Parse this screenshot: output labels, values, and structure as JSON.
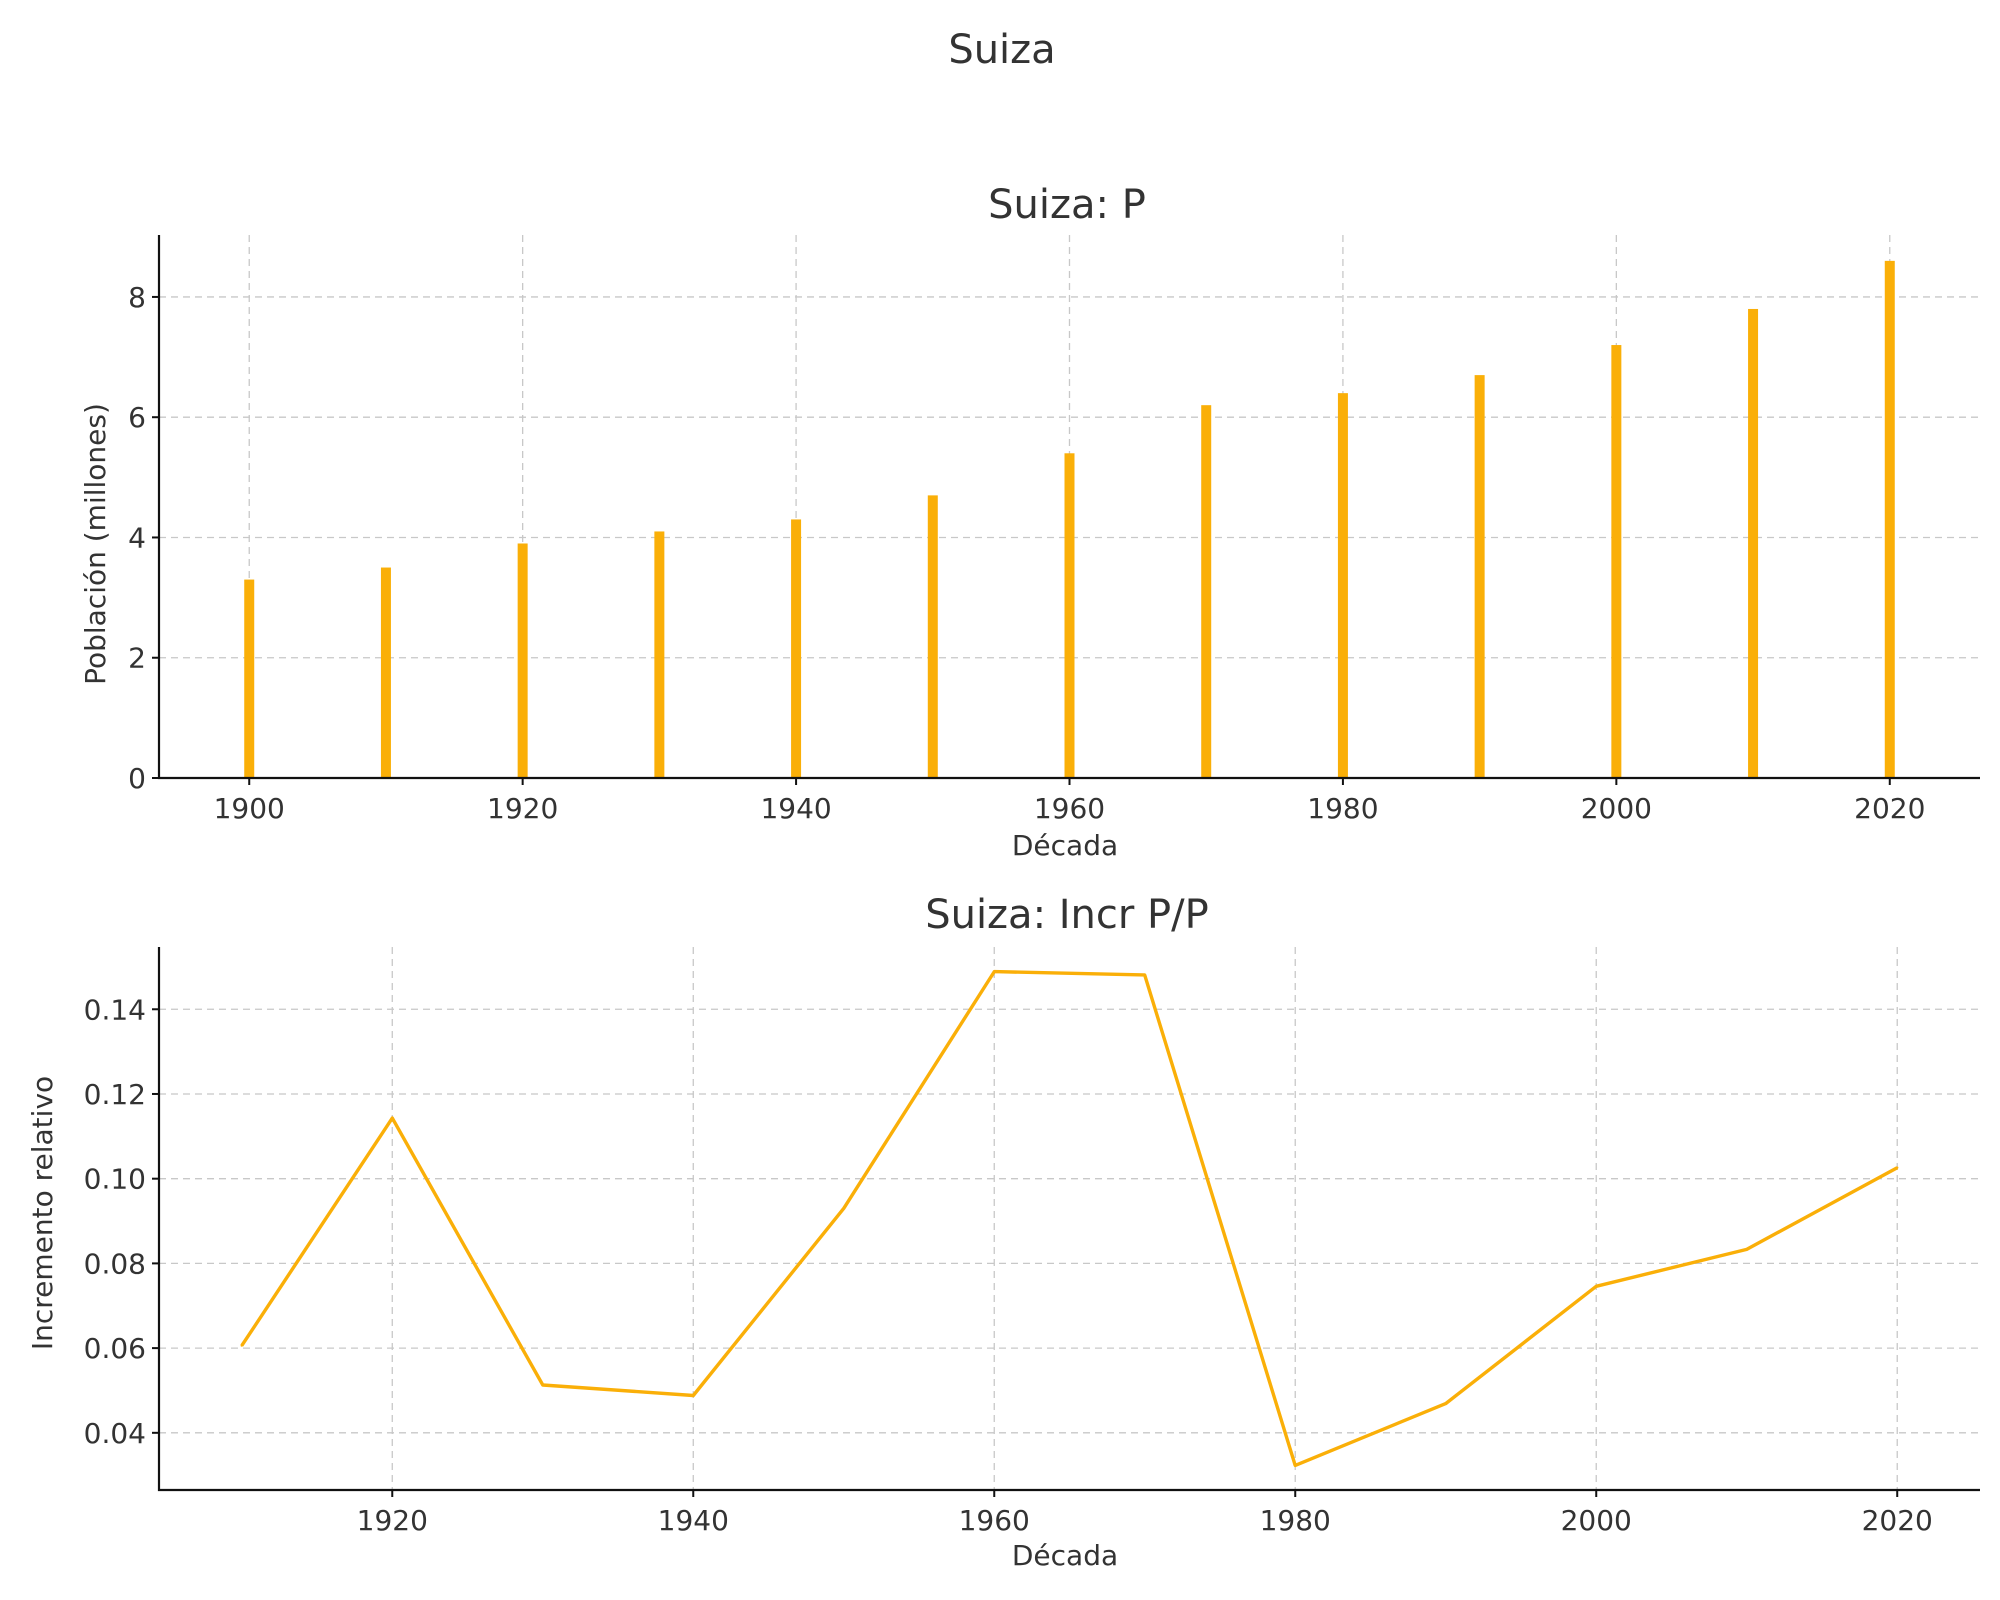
{
  "figure": {
    "suptitle": "Suiza"
  },
  "chart_data": [
    {
      "type": "bar",
      "title": "Suiza: P",
      "xlabel": "Década",
      "ylabel": "Población (millones)",
      "color": "#FAAF08",
      "x": [
        1900,
        1910,
        1920,
        1930,
        1940,
        1950,
        1960,
        1970,
        1980,
        1990,
        2000,
        2010,
        2020
      ],
      "values": [
        3.3,
        3.5,
        3.9,
        4.1,
        4.3,
        4.7,
        5.4,
        6.2,
        6.4,
        6.7,
        7.2,
        7.8,
        8.6
      ],
      "xlim": [
        1893.4,
        2026.6
      ],
      "ylim": [
        0,
        9.03
      ],
      "xticks": [
        1900,
        1920,
        1940,
        1960,
        1980,
        2000,
        2020
      ],
      "yticks": [
        0,
        2,
        4,
        6,
        8
      ],
      "grid": true
    },
    {
      "type": "line",
      "title": "Suiza: Incr P/P",
      "xlabel": "Década",
      "ylabel": "Incremento relativo",
      "color": "#FAAF08",
      "x": [
        1910,
        1920,
        1930,
        1940,
        1950,
        1960,
        1970,
        1980,
        1990,
        2000,
        2010,
        2020
      ],
      "values": [
        0.0606,
        0.1143,
        0.0513,
        0.0488,
        0.093,
        0.1489,
        0.1481,
        0.0323,
        0.0469,
        0.0746,
        0.0833,
        0.1026
      ],
      "xlim": [
        1904.5,
        2025.5
      ],
      "ylim": [
        0.0265,
        0.1547
      ],
      "xticks": [
        1920,
        1940,
        1960,
        1980,
        2000,
        2020
      ],
      "yticks": [
        0.04,
        0.06,
        0.08,
        0.1,
        0.12,
        0.14
      ],
      "ytick_labels": [
        "0.04",
        "0.06",
        "0.08",
        "0.10",
        "0.12",
        "0.14"
      ],
      "grid": true
    }
  ]
}
